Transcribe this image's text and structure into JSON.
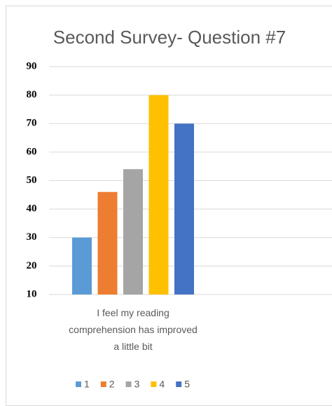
{
  "chart_data": {
    "type": "bar",
    "title": "Second Survey- Question #7",
    "categories": [
      "I feel my reading comprehension has improved a little bit"
    ],
    "series": [
      {
        "name": "1",
        "color": "#5b9bd5",
        "values": [
          30
        ]
      },
      {
        "name": "2",
        "color": "#ed7d31",
        "values": [
          46
        ]
      },
      {
        "name": "3",
        "color": "#a5a5a5",
        "values": [
          54
        ]
      },
      {
        "name": "4",
        "color": "#ffc000",
        "values": [
          80
        ]
      },
      {
        "name": "5",
        "color": "#4472c4",
        "values": [
          70
        ]
      }
    ],
    "ylim": [
      10,
      90
    ],
    "yticks": [
      10,
      20,
      30,
      40,
      50,
      60,
      70,
      80,
      90
    ],
    "grid": true,
    "legend": "bottom"
  }
}
